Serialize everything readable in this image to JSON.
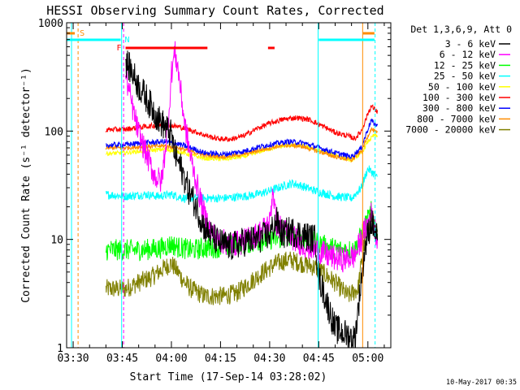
{
  "chart_data": {
    "type": "line",
    "title": "HESSI Observing Summary Count Rates, Corrected",
    "xlabel": "Start Time (17-Sep-14 03:28:02)",
    "ylabel": "Corrected Count Rate (s⁻¹ detector⁻¹)",
    "y_scale": "log",
    "ylim": [
      1,
      1000
    ],
    "x_unit": "minutes",
    "xlim_minutes": [
      208,
      307
    ],
    "x_ticks": [
      {
        "label": "03:30",
        "minutes": 210
      },
      {
        "label": "03:45",
        "minutes": 225
      },
      {
        "label": "04:00",
        "minutes": 240
      },
      {
        "label": "04:15",
        "minutes": 255
      },
      {
        "label": "04:30",
        "minutes": 270
      },
      {
        "label": "04:45",
        "minutes": 285
      },
      {
        "label": "05:00",
        "minutes": 300
      }
    ],
    "y_ticks": [
      {
        "label": "1",
        "value": 1
      },
      {
        "label": "10",
        "value": 10
      },
      {
        "label": "100",
        "value": 100
      },
      {
        "label": "1000",
        "value": 1000
      }
    ],
    "legend_header": "Det 1,3,6,9, Att 0",
    "legend_position": "right",
    "grid": false,
    "data_range_minutes": [
      226,
      303
    ],
    "series": [
      {
        "name": "3 - 6 keV",
        "color": "#000000",
        "noise": 0.14,
        "points": [
          [
            226,
            440
          ],
          [
            228,
            350
          ],
          [
            230,
            260
          ],
          [
            232,
            210
          ],
          [
            234,
            165
          ],
          [
            236,
            130
          ],
          [
            238,
            110
          ],
          [
            240,
            92
          ],
          [
            241,
            62
          ],
          [
            243,
            45
          ],
          [
            245,
            30
          ],
          [
            247,
            22
          ],
          [
            248.5,
            17
          ],
          [
            250,
            13
          ],
          [
            252,
            11
          ],
          [
            254,
            9.5
          ],
          [
            256,
            9
          ],
          [
            258,
            8.5
          ],
          [
            262,
            9.5
          ],
          [
            266,
            10
          ],
          [
            270,
            11
          ],
          [
            272,
            15
          ],
          [
            274,
            11
          ],
          [
            276,
            12
          ],
          [
            280,
            11
          ],
          [
            284,
            10
          ],
          [
            285,
            4.5
          ],
          [
            290,
            1.5
          ],
          [
            296,
            1.2
          ],
          [
            299,
            8
          ],
          [
            301,
            15
          ],
          [
            303,
            10
          ]
        ]
      },
      {
        "name": "6 - 12 keV",
        "color": "#ff00ff",
        "noise": 0.12,
        "points": [
          [
            226,
            330
          ],
          [
            228,
            170
          ],
          [
            230,
            95
          ],
          [
            232,
            65
          ],
          [
            234,
            45
          ],
          [
            235,
            38
          ],
          [
            237,
            34
          ],
          [
            239,
            120
          ],
          [
            240,
            340
          ],
          [
            241,
            540
          ],
          [
            242,
            380
          ],
          [
            244,
            120
          ],
          [
            246,
            55
          ],
          [
            248,
            30
          ],
          [
            250,
            17
          ],
          [
            252,
            12
          ],
          [
            254,
            10
          ],
          [
            258,
            9
          ],
          [
            262,
            9.5
          ],
          [
            266,
            11
          ],
          [
            270,
            14
          ],
          [
            271,
            30
          ],
          [
            272,
            14
          ],
          [
            276,
            11
          ],
          [
            280,
            9
          ],
          [
            284,
            8
          ],
          [
            288,
            7
          ],
          [
            292,
            6.5
          ],
          [
            296,
            7
          ],
          [
            299,
            12
          ],
          [
            301,
            17
          ],
          [
            303,
            10
          ]
        ]
      },
      {
        "name": "12 - 25 keV",
        "color": "#00ff00",
        "noise": 0.1,
        "points": [
          [
            220,
            8
          ],
          [
            226,
            8
          ],
          [
            230,
            8
          ],
          [
            236,
            8.2
          ],
          [
            240,
            9
          ],
          [
            242,
            8.5
          ],
          [
            246,
            8
          ],
          [
            250,
            8.3
          ],
          [
            256,
            8.5
          ],
          [
            260,
            9
          ],
          [
            266,
            9.5
          ],
          [
            270,
            10
          ],
          [
            276,
            10.5
          ],
          [
            280,
            10
          ],
          [
            284,
            9.5
          ],
          [
            288,
            8.5
          ],
          [
            292,
            8
          ],
          [
            296,
            8
          ],
          [
            299,
            13
          ],
          [
            301,
            18
          ],
          [
            303,
            11
          ]
        ]
      },
      {
        "name": "25 - 50 keV",
        "color": "#00ffff",
        "noise": 0.04,
        "points": [
          [
            220,
            26
          ],
          [
            226,
            25
          ],
          [
            232,
            26
          ],
          [
            236,
            25
          ],
          [
            240,
            26
          ],
          [
            244,
            24
          ],
          [
            250,
            24
          ],
          [
            256,
            24
          ],
          [
            262,
            25
          ],
          [
            266,
            26
          ],
          [
            270,
            28
          ],
          [
            274,
            31
          ],
          [
            277,
            33
          ],
          [
            280,
            31
          ],
          [
            284,
            28
          ],
          [
            290,
            25
          ],
          [
            295,
            24
          ],
          [
            298,
            30
          ],
          [
            300,
            45
          ],
          [
            302,
            40
          ],
          [
            303,
            36
          ]
        ]
      },
      {
        "name": "50 - 100 keV",
        "color": "#ffff00",
        "noise": 0.02,
        "points": [
          [
            220,
            62
          ],
          [
            226,
            63
          ],
          [
            232,
            66
          ],
          [
            238,
            68
          ],
          [
            242,
            65
          ],
          [
            246,
            60
          ],
          [
            250,
            56
          ],
          [
            256,
            55
          ],
          [
            262,
            58
          ],
          [
            268,
            66
          ],
          [
            272,
            71
          ],
          [
            276,
            74
          ],
          [
            280,
            73
          ],
          [
            284,
            68
          ],
          [
            290,
            60
          ],
          [
            295,
            54
          ],
          [
            298,
            62
          ],
          [
            300,
            80
          ],
          [
            302,
            92
          ],
          [
            303,
            88
          ]
        ]
      },
      {
        "name": "100 - 300 keV",
        "color": "#ff0000",
        "noise": 0.025,
        "points": [
          [
            220,
            103
          ],
          [
            226,
            104
          ],
          [
            232,
            110
          ],
          [
            238,
            115
          ],
          [
            242,
            110
          ],
          [
            246,
            102
          ],
          [
            250,
            92
          ],
          [
            254,
            85
          ],
          [
            258,
            84
          ],
          [
            262,
            90
          ],
          [
            266,
            105
          ],
          [
            270,
            118
          ],
          [
            274,
            128
          ],
          [
            278,
            133
          ],
          [
            282,
            128
          ],
          [
            286,
            112
          ],
          [
            290,
            97
          ],
          [
            294,
            90
          ],
          [
            296,
            85
          ],
          [
            298,
            100
          ],
          [
            300,
            145
          ],
          [
            301,
            170
          ],
          [
            303,
            150
          ]
        ]
      },
      {
        "name": "300 - 800 keV",
        "color": "#0000ff",
        "noise": 0.025,
        "points": [
          [
            220,
            74
          ],
          [
            226,
            75
          ],
          [
            232,
            78
          ],
          [
            238,
            80
          ],
          [
            242,
            76
          ],
          [
            246,
            70
          ],
          [
            250,
            63
          ],
          [
            256,
            61
          ],
          [
            262,
            65
          ],
          [
            268,
            73
          ],
          [
            272,
            77
          ],
          [
            276,
            80
          ],
          [
            280,
            78
          ],
          [
            284,
            72
          ],
          [
            290,
            63
          ],
          [
            295,
            58
          ],
          [
            298,
            70
          ],
          [
            300,
            105
          ],
          [
            301,
            125
          ],
          [
            303,
            110
          ]
        ]
      },
      {
        "name": "800 - 7000 keV",
        "color": "#ff8c00",
        "noise": 0.02,
        "points": [
          [
            220,
            70
          ],
          [
            226,
            70
          ],
          [
            232,
            72
          ],
          [
            238,
            73
          ],
          [
            242,
            70
          ],
          [
            246,
            65
          ],
          [
            250,
            60
          ],
          [
            256,
            58
          ],
          [
            262,
            61
          ],
          [
            268,
            68
          ],
          [
            272,
            72
          ],
          [
            276,
            74
          ],
          [
            280,
            72
          ],
          [
            284,
            66
          ],
          [
            290,
            58
          ],
          [
            295,
            54
          ],
          [
            298,
            65
          ],
          [
            300,
            90
          ],
          [
            301,
            105
          ],
          [
            303,
            95
          ]
        ]
      },
      {
        "name": "7000 - 20000 keV",
        "color": "#808000",
        "noise": 0.09,
        "points": [
          [
            220,
            3.5
          ],
          [
            226,
            3.5
          ],
          [
            230,
            4
          ],
          [
            234,
            4.5
          ],
          [
            238,
            5.5
          ],
          [
            240,
            6
          ],
          [
            242,
            5
          ],
          [
            244,
            4
          ],
          [
            246,
            3.5
          ],
          [
            250,
            3
          ],
          [
            256,
            3
          ],
          [
            260,
            3.2
          ],
          [
            264,
            4
          ],
          [
            268,
            5
          ],
          [
            272,
            6
          ],
          [
            276,
            6.5
          ],
          [
            280,
            6
          ],
          [
            284,
            5.5
          ],
          [
            286,
            5
          ],
          [
            290,
            4
          ],
          [
            294,
            3
          ],
          [
            297,
            3.5
          ],
          [
            299,
            10
          ],
          [
            301,
            17
          ],
          [
            303,
            10
          ]
        ]
      }
    ],
    "top_bars": [
      {
        "label": "S",
        "color": "#ff8c00",
        "level": 0,
        "segments": [
          [
            208,
            210.5
          ],
          [
            298.5,
            302
          ]
        ]
      },
      {
        "label": "N",
        "color": "#00ffff",
        "level": 1,
        "segments": [
          [
            208,
            224.5
          ],
          [
            285,
            302
          ]
        ]
      },
      {
        "label": "F",
        "color": "#ff0000",
        "level": 2,
        "segments": [
          [
            226,
            251
          ],
          [
            269.5,
            271.5
          ]
        ]
      }
    ],
    "vlines": [
      {
        "minutes": 211.5,
        "color": "#ff8c00",
        "style": "dashed"
      },
      {
        "minutes": 209.5,
        "color": "#00ffff",
        "style": "solid"
      },
      {
        "minutes": 224.8,
        "color": "#00ffff",
        "style": "solid"
      },
      {
        "minutes": 225.4,
        "color": "#ff00ff",
        "style": "dashed"
      },
      {
        "minutes": 284.8,
        "color": "#00ffff",
        "style": "solid"
      },
      {
        "minutes": 298.4,
        "color": "#ff8c00",
        "style": "solid"
      },
      {
        "minutes": 302.2,
        "color": "#00ffff",
        "style": "dashed"
      }
    ]
  },
  "footer": {
    "date_stamp": "10-May-2017 00:35"
  }
}
